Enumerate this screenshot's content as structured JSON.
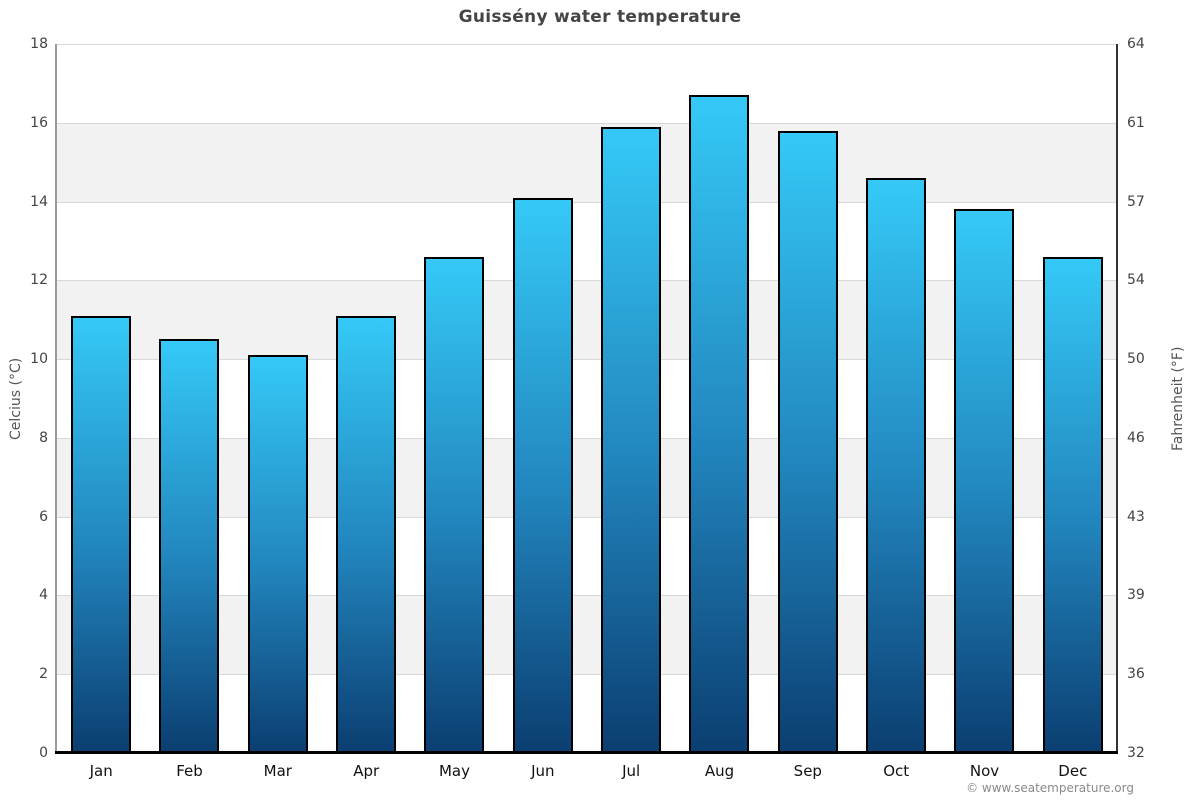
{
  "title": "Guissény water temperature",
  "footer": "© www.seatemperature.org",
  "chart_data": {
    "type": "bar",
    "title": "Guissény water temperature",
    "categories": [
      "Jan",
      "Feb",
      "Mar",
      "Apr",
      "May",
      "Jun",
      "Jul",
      "Aug",
      "Sep",
      "Oct",
      "Nov",
      "Dec"
    ],
    "values": [
      11.1,
      10.5,
      10.1,
      11.1,
      12.6,
      14.1,
      15.9,
      16.7,
      15.8,
      14.6,
      13.8,
      12.6
    ],
    "unit": "°C",
    "xlabel": "",
    "ylabel_left": "Celcius (°C)",
    "ylabel_right": "Fahrenheit (°F)",
    "ylim_left": [
      0,
      18
    ],
    "ylim_right": [
      32,
      64
    ],
    "yticks_left": [
      "0",
      "2",
      "4",
      "6",
      "8",
      "10",
      "12",
      "14",
      "16",
      "18"
    ],
    "yticks_right": [
      "32",
      "36",
      "39",
      "43",
      "46",
      "50",
      "54",
      "57",
      "61",
      "64"
    ],
    "grid": "horizontal gridlines with alternating background bands",
    "legend": "none",
    "colors": {
      "bar_gradient_top": "#35c9f7",
      "bar_gradient_mid": "#2287bf",
      "bar_gradient_bottom": "#0b3e71",
      "bar_border": "#000000",
      "band_alt": "#f2f2f2",
      "gridline": "#d8d8d8",
      "title_text": "#454545",
      "tick_text": "#444444"
    }
  }
}
